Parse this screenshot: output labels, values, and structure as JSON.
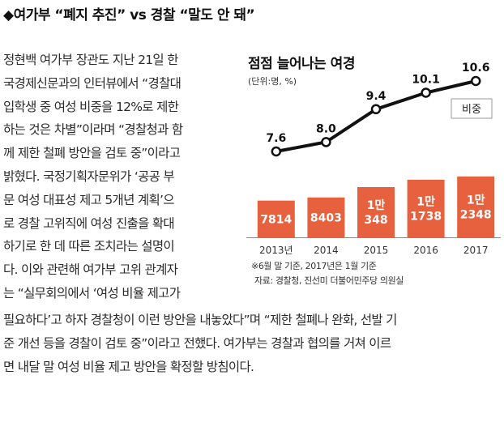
{
  "headline": "◆여가부 “폐지 추진” vs 경찰 “말도 안 돼”",
  "article_left_lines": [
    "정현백 여가부 장관도 지난 21일 한",
    "국경제신문과의 인터뷰에서 “경찰대",
    "입학생 중 여성 비중을 12%로 제한",
    "하는 것은 차별”이라며 “경찰청과 함",
    "께 제한 철폐 방안을 검토 중”이라고",
    "밝혔다. 국정기획자문위가 ‘공공 부",
    "문 여성 대표성 제고 5개년 계획’으",
    "로 경찰 고위직에 여성 진출을 확대",
    "하기로 한 데 따른 조치라는 설명이",
    "다. 이와 관련해 여가부 고위 관계자",
    "는 “실무회의에서 ‘여성 비율 제고가"
  ],
  "article_full_lines": [
    "필요하다’고 하자 경찰청이 이런 방안을 내놓았다”며 “제한 철폐나 완화, 선발 기",
    "준 개선 등을 경찰이 검토 중”이라고 전했다. 여가부는 경찰과 협의를 거쳐 이르",
    "면 내달 말 여성 비율 제고 방안을 확정할 방침이다."
  ],
  "chart_data": {
    "type": "bar",
    "title": "점점 늘어나는 여경",
    "unit": "(단위:명, %)",
    "categories": [
      "2013년",
      "2014",
      "2015",
      "2016",
      "2017"
    ],
    "bars": {
      "values": [
        7814,
        8403,
        10348,
        11738,
        12348
      ],
      "labels": [
        [
          "7814"
        ],
        [
          "8403"
        ],
        [
          "1만",
          "348"
        ],
        [
          "1만",
          "1738"
        ],
        [
          "1만",
          "2348"
        ]
      ],
      "color": "#e8613f"
    },
    "series": [
      {
        "name": "비중",
        "type": "line",
        "values": [
          7.6,
          8.0,
          9.4,
          10.1,
          10.6
        ],
        "labels": [
          "7.6",
          "8.0",
          "9.4",
          "10.1",
          "10.6"
        ],
        "color": "#111111"
      }
    ],
    "notes": [
      "※6월 말 기준, 2017년은 1월 기준",
      "자료: 경찰청, 진선미 더불어민주당 의원실"
    ]
  }
}
